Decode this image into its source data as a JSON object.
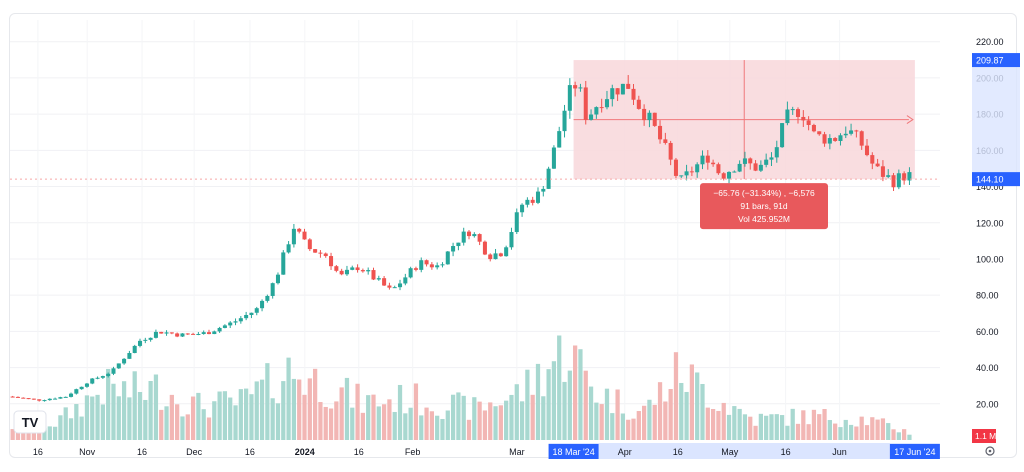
{
  "chart_data": {
    "type": "candlestick",
    "title": "",
    "y_ticks": [
      20,
      40,
      60,
      80,
      100,
      120,
      140,
      160,
      180,
      200,
      220
    ],
    "y_tick_labels": [
      "20.00",
      "40.00",
      "60.00",
      "80.00",
      "100.00",
      "120.00",
      "140.00",
      "160.00",
      "180.00",
      "200.00",
      "220.00"
    ],
    "ylim": [
      0,
      232
    ],
    "grid": true,
    "x_labels": [
      {
        "label": "16",
        "pos": 0.03
      },
      {
        "label": "Nov",
        "pos": 0.083
      },
      {
        "label": "16",
        "pos": 0.142
      },
      {
        "label": "Dec",
        "pos": 0.198
      },
      {
        "label": "16",
        "pos": 0.258
      },
      {
        "label": "2024",
        "pos": 0.317,
        "bold": true
      },
      {
        "label": "16",
        "pos": 0.375
      },
      {
        "label": "Feb",
        "pos": 0.433
      },
      {
        "label": "Mar",
        "pos": 0.545
      },
      {
        "label": "Apr",
        "pos": 0.661
      },
      {
        "label": "16",
        "pos": 0.718
      },
      {
        "label": "May",
        "pos": 0.774
      },
      {
        "label": "16",
        "pos": 0.834
      },
      {
        "label": "Jun",
        "pos": 0.892
      }
    ],
    "price_keypoints": [
      [
        0.0,
        24
      ],
      [
        0.03,
        22
      ],
      [
        0.06,
        24
      ],
      [
        0.083,
        32
      ],
      [
        0.11,
        38
      ],
      [
        0.12,
        44
      ],
      [
        0.14,
        55
      ],
      [
        0.16,
        60
      ],
      [
        0.185,
        58
      ],
      [
        0.21,
        59
      ],
      [
        0.24,
        65
      ],
      [
        0.265,
        72
      ],
      [
        0.285,
        88
      ],
      [
        0.305,
        118
      ],
      [
        0.32,
        106
      ],
      [
        0.34,
        102
      ],
      [
        0.355,
        90
      ],
      [
        0.375,
        96
      ],
      [
        0.39,
        90
      ],
      [
        0.41,
        82
      ],
      [
        0.425,
        90
      ],
      [
        0.44,
        98
      ],
      [
        0.46,
        96
      ],
      [
        0.48,
        110
      ],
      [
        0.495,
        116
      ],
      [
        0.515,
        102
      ],
      [
        0.53,
        104
      ],
      [
        0.55,
        130
      ],
      [
        0.57,
        136
      ],
      [
        0.585,
        160
      ],
      [
        0.6,
        190
      ],
      [
        0.61,
        198
      ],
      [
        0.62,
        178
      ],
      [
        0.635,
        188
      ],
      [
        0.65,
        194
      ],
      [
        0.665,
        196
      ],
      [
        0.675,
        186
      ],
      [
        0.69,
        175
      ],
      [
        0.705,
        160
      ],
      [
        0.72,
        142
      ],
      [
        0.735,
        150
      ],
      [
        0.75,
        157
      ],
      [
        0.765,
        146
      ],
      [
        0.785,
        154
      ],
      [
        0.805,
        150
      ],
      [
        0.82,
        156
      ],
      [
        0.835,
        178
      ],
      [
        0.85,
        183
      ],
      [
        0.865,
        168
      ],
      [
        0.885,
        166
      ],
      [
        0.9,
        172
      ],
      [
        0.915,
        164
      ],
      [
        0.93,
        150
      ],
      [
        0.95,
        143
      ],
      [
        0.96,
        146
      ]
    ],
    "volume_profile": [
      [
        0.0,
        8
      ],
      [
        0.05,
        10
      ],
      [
        0.08,
        22
      ],
      [
        0.1,
        30
      ],
      [
        0.13,
        28
      ],
      [
        0.16,
        30
      ],
      [
        0.2,
        20
      ],
      [
        0.25,
        22
      ],
      [
        0.3,
        40
      ],
      [
        0.33,
        34
      ],
      [
        0.38,
        22
      ],
      [
        0.43,
        24
      ],
      [
        0.5,
        18
      ],
      [
        0.55,
        28
      ],
      [
        0.585,
        46
      ],
      [
        0.6,
        54
      ],
      [
        0.63,
        28
      ],
      [
        0.68,
        16
      ],
      [
        0.72,
        40
      ],
      [
        0.76,
        24
      ],
      [
        0.8,
        12
      ],
      [
        0.86,
        14
      ],
      [
        0.92,
        12
      ],
      [
        0.97,
        4
      ]
    ],
    "current_price": 144.1,
    "current_price_label": "144.10",
    "current_volume_label": "1.1 M",
    "measure": {
      "start_pos": 0.606,
      "end_pos": 0.973,
      "top_price": 209.87,
      "top_label": "209.87",
      "bottom_price": 144.1,
      "start_date": "18 Mar '24",
      "end_date": "17 Jun '24",
      "change_text": "−65.76 (−31.34%) , −6,576",
      "bars_text": "91 bars, 91d",
      "vol_text": "Vol 425.952M"
    },
    "colors": {
      "up": "#26a69a",
      "down": "#ef5350",
      "up_volume": "#a8d8d0",
      "down_volume": "#f2b6b4",
      "measure_fill": "#f8d7da",
      "measure_line": "#f0787b",
      "label_blue": "#2962ff",
      "label_red": "#f23645",
      "tooltip": "#e8595c"
    },
    "logo": "TV",
    "settings_icon": "gear-icon"
  }
}
